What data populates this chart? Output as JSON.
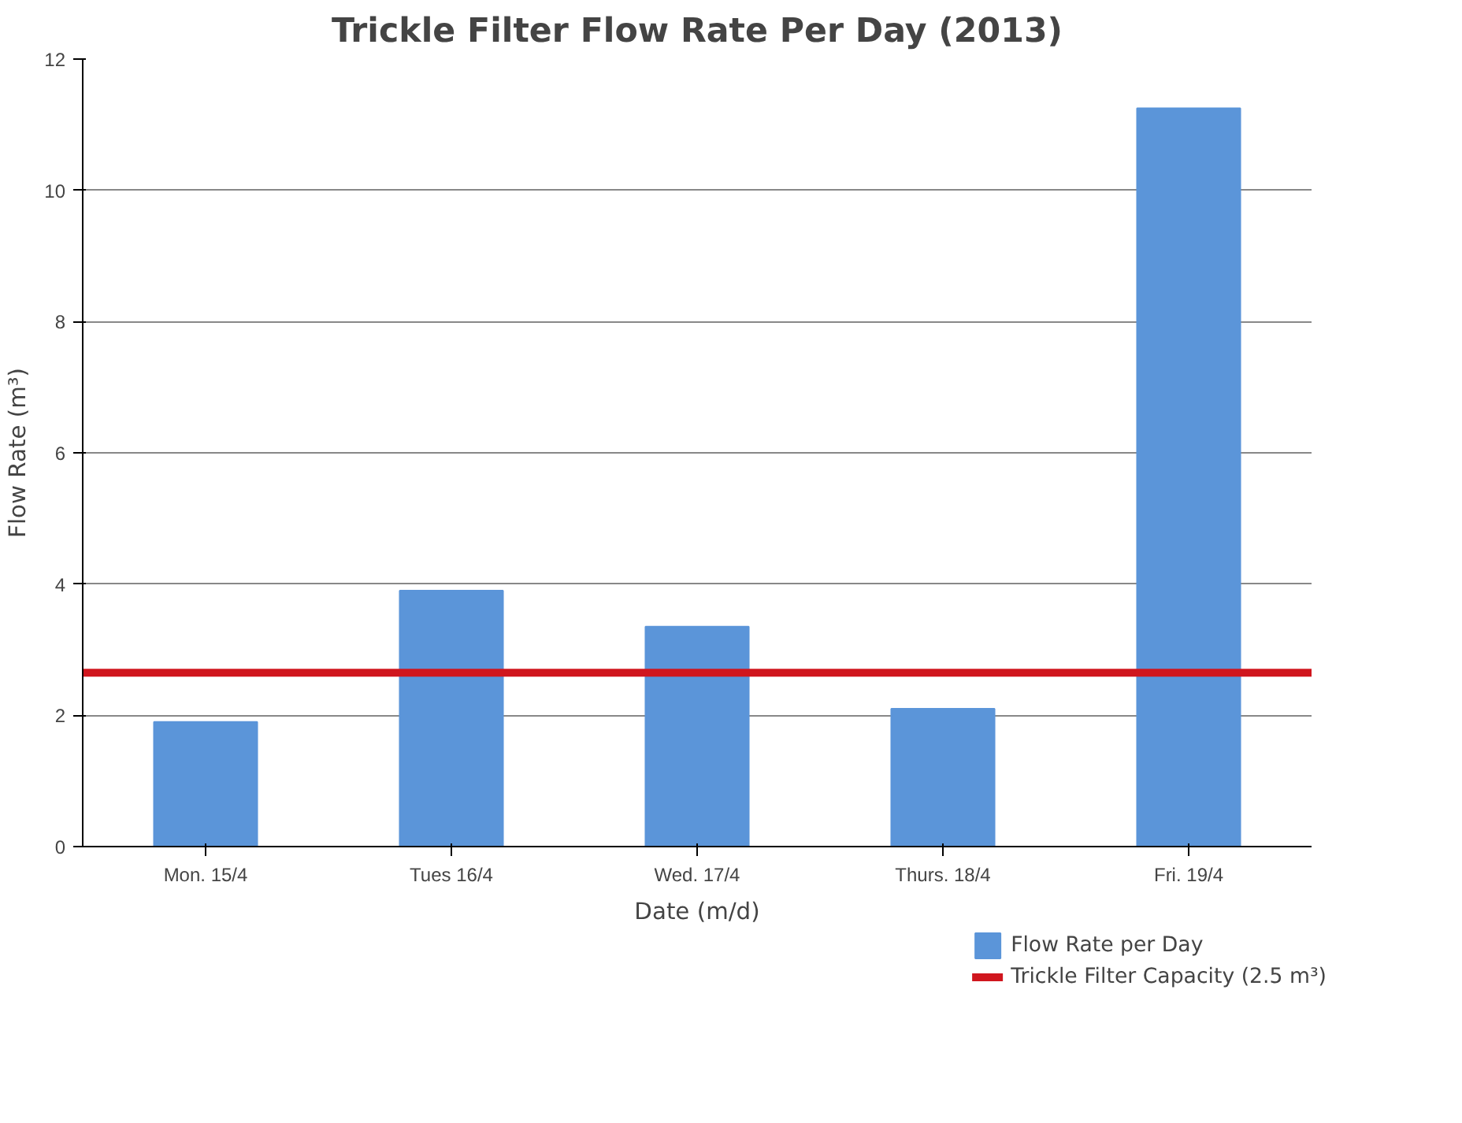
{
  "chart_data": {
    "type": "bar",
    "title": "Trickle Filter Flow Rate Per Day (2013)",
    "xlabel": "Date (m/d)",
    "ylabel": "Flow Rate (m³)",
    "categories": [
      "Mon. 15/4",
      "Tues 16/4",
      "Wed. 17/4",
      "Thurs. 18/4",
      "Fri. 19/4"
    ],
    "series": [
      {
        "name": "Flow Rate per Day",
        "color": "#5b95d9",
        "values": [
          1.9,
          3.9,
          3.35,
          2.1,
          11.25
        ]
      }
    ],
    "ylim": [
      0,
      12
    ],
    "yticks": [
      0,
      2,
      4,
      6,
      8,
      10,
      12
    ],
    "grid": "y",
    "legend": "bottom right",
    "ref_lines": [
      {
        "axis": "y",
        "value": 2.65,
        "label": "Trickle Filter Capacity (2.5 m³)",
        "color": "#d0161e"
      }
    ]
  }
}
